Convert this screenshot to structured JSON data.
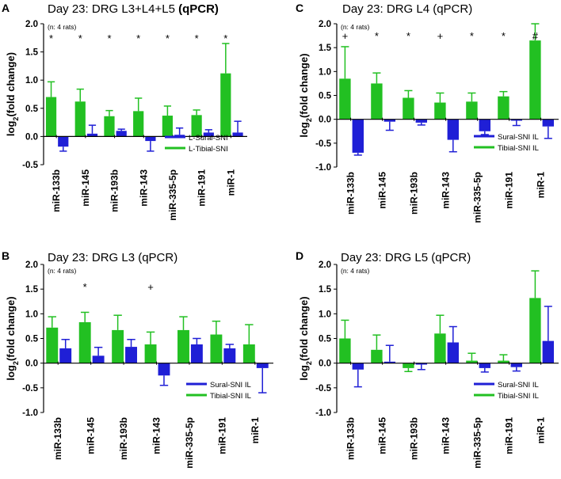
{
  "chart_data": [
    {
      "type": "bar",
      "panel_letter": "A",
      "title": "Day 23: DRG  L3+L4+L5",
      "title_suffix": "(qPCR)",
      "note": "(n: 4 rats)",
      "ylabel": "log2(fold change)",
      "ylabel_main": "log",
      "ylabel_sub": "2",
      "ylabel_rest": "(fold change)",
      "ylim": [
        -0.5,
        2.0
      ],
      "yticks": [
        "-0.5",
        "0.0",
        "0.5",
        "1.0",
        "1.5",
        "2.0"
      ],
      "categories": [
        "miR-133b",
        "miR-145",
        "miR-193b",
        "miR-143",
        "miR-335-5p",
        "miR-191",
        "miR-1"
      ],
      "series_order": [
        "Tibial",
        "Sural"
      ],
      "series": [
        {
          "name": "L-Sural-SNI",
          "color": "#1f1fd6",
          "values": [
            -0.18,
            0.05,
            0.1,
            -0.08,
            0.03,
            0.07,
            0.07
          ],
          "errors": [
            0.08,
            0.15,
            0.03,
            0.18,
            0.12,
            0.05,
            0.2
          ]
        },
        {
          "name": "L-Tibial-SNI",
          "color": "#22c022",
          "values": [
            0.7,
            0.62,
            0.36,
            0.45,
            0.37,
            0.38,
            1.12
          ],
          "errors": [
            0.27,
            0.22,
            0.1,
            0.23,
            0.17,
            0.09,
            0.53
          ]
        }
      ],
      "annotations": [
        "*",
        "*",
        "*",
        "*",
        "*",
        "*",
        "*"
      ],
      "legend_position": "lower-right"
    },
    {
      "type": "bar",
      "panel_letter": "B",
      "title": "Day 23: DRG  L3 (qPCR)",
      "note": "(n: 4 rats)",
      "ylabel": "log2(fold change)",
      "ylabel_main": "log",
      "ylabel_sub": "2",
      "ylabel_rest": "(fold change)",
      "ylim": [
        -1.0,
        2.0
      ],
      "yticks": [
        "-1.0",
        "-0.5",
        "0.0",
        "0.5",
        "1.0",
        "1.5",
        "2.0"
      ],
      "categories": [
        "miR-133b",
        "miR-145",
        "miR-193b",
        "miR-143",
        "miR-335-5p",
        "miR-191",
        "miR-1"
      ],
      "series_order": [
        "Tibial",
        "Sural"
      ],
      "series": [
        {
          "name": "Sural-SNI IL",
          "color": "#1f1fd6",
          "values": [
            0.3,
            0.15,
            0.33,
            -0.25,
            0.38,
            0.3,
            -0.1
          ],
          "errors": [
            0.18,
            0.17,
            0.15,
            0.2,
            0.12,
            0.08,
            0.5
          ]
        },
        {
          "name": "Tibial-SNI IL",
          "color": "#22c022",
          "values": [
            0.72,
            0.83,
            0.67,
            0.38,
            0.67,
            0.58,
            0.38
          ],
          "errors": [
            0.22,
            0.2,
            0.3,
            0.25,
            0.27,
            0.27,
            0.4
          ]
        }
      ],
      "annotations": [
        "",
        "*",
        "",
        "+",
        "",
        "",
        ""
      ],
      "legend_position": "lower-right"
    },
    {
      "type": "bar",
      "panel_letter": "C",
      "title": "Day 23: DRG  L4 (qPCR)",
      "note": "(n: 4 rats)",
      "ylabel": "log2(fold change)",
      "ylabel_main": "log",
      "ylabel_sub": "2",
      "ylabel_rest": "(fold change)",
      "ylim": [
        -1.0,
        2.0
      ],
      "yticks": [
        "-1.0",
        "-0.5",
        "0.0",
        "0.5",
        "1.0",
        "1.5",
        "2.0"
      ],
      "categories": [
        "miR-133b",
        "miR-145",
        "miR-193b",
        "miR-143",
        "miR-335-5p",
        "miR-191",
        "miR-1"
      ],
      "series_order": [
        "Tibial",
        "Sural"
      ],
      "series": [
        {
          "name": "Sural-SNI IL",
          "color": "#1f1fd6",
          "values": [
            -0.7,
            -0.05,
            -0.07,
            -0.43,
            -0.25,
            -0.03,
            -0.15
          ],
          "errors": [
            0.05,
            0.18,
            0.05,
            0.25,
            0.07,
            0.1,
            0.25
          ]
        },
        {
          "name": "Tibial-SNI IL",
          "color": "#22c022",
          "values": [
            0.85,
            0.75,
            0.45,
            0.35,
            0.37,
            0.48,
            1.65
          ],
          "errors": [
            0.67,
            0.22,
            0.15,
            0.2,
            0.18,
            0.1,
            0.35
          ]
        }
      ],
      "annotations": [
        "+",
        "*",
        "*",
        "+",
        "*",
        "*",
        "#"
      ],
      "legend_position": "lower-right"
    },
    {
      "type": "bar",
      "panel_letter": "D",
      "title": "Day 23: DRG  L5 (qPCR)",
      "note": "(n: 4 rats)",
      "ylabel": "log2(fold change)",
      "ylabel_main": "log",
      "ylabel_sub": "2",
      "ylabel_rest": "(fold change)",
      "ylim": [
        -1.0,
        2.0
      ],
      "yticks": [
        "-1.0",
        "-0.5",
        "0.0",
        "0.5",
        "1.0",
        "1.5",
        "2.0"
      ],
      "categories": [
        "miR-133b",
        "miR-145",
        "miR-193b",
        "miR-143",
        "miR-335-5p",
        "miR-191",
        "miR-1"
      ],
      "series_order": [
        "Tibial",
        "Sural"
      ],
      "series": [
        {
          "name": "Sural-SNI IL",
          "color": "#1f1fd6",
          "values": [
            -0.13,
            0.03,
            -0.03,
            0.42,
            -0.1,
            -0.08,
            0.45
          ],
          "errors": [
            0.35,
            0.33,
            0.1,
            0.32,
            0.08,
            0.08,
            0.7
          ]
        },
        {
          "name": "Tibial-SNI IL",
          "color": "#22c022",
          "values": [
            0.5,
            0.27,
            -0.1,
            0.6,
            0.05,
            0.05,
            1.32
          ],
          "errors": [
            0.37,
            0.3,
            0.07,
            0.37,
            0.15,
            0.12,
            0.55
          ]
        }
      ],
      "annotations": [
        "",
        "",
        "",
        "",
        "",
        "",
        ""
      ],
      "legend_position": "lower-right"
    }
  ]
}
